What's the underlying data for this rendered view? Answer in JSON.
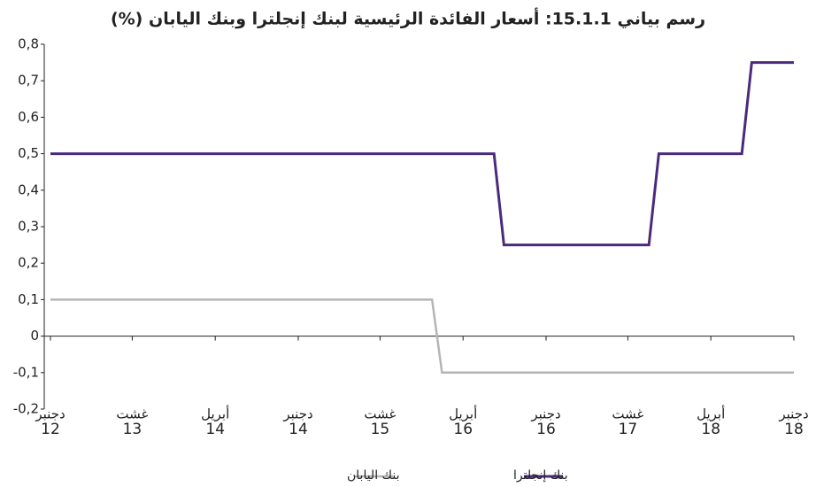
{
  "chart_data": {
    "type": "line",
    "title": "رسم بياني 15.1.1: أسعار الفائدة الرئيسية لبنك إنجلترا  وبنك اليابان (%)",
    "xlim": [
      2012.92,
      2018.92
    ],
    "xticks": [
      {
        "value": 2012.92,
        "label": "دجنبر",
        "year": "12"
      },
      {
        "value": 2013.58,
        "label": "غشت",
        "year": "13"
      },
      {
        "value": 2014.25,
        "label": "أبريل",
        "year": "14"
      },
      {
        "value": 2014.92,
        "label": "دجنبر",
        "year": "14"
      },
      {
        "value": 2015.58,
        "label": "غشت",
        "year": "15"
      },
      {
        "value": 2016.25,
        "label": "أبريل",
        "year": "16"
      },
      {
        "value": 2016.92,
        "label": "دجنبر",
        "year": "16"
      },
      {
        "value": 2017.58,
        "label": "غشت",
        "year": "17"
      },
      {
        "value": 2018.25,
        "label": "أبريل",
        "year": "18"
      },
      {
        "value": 2018.92,
        "label": "دجنبر",
        "year": "18"
      }
    ],
    "ylim": [
      -0.2,
      0.8
    ],
    "yticks": [
      {
        "value": -0.2,
        "label": "-0,2"
      },
      {
        "value": -0.1,
        "label": "-0,1"
      },
      0,
      {
        "value": 0.1,
        "label": "0,1"
      },
      {
        "value": 0.2,
        "label": "0,2"
      },
      {
        "value": 0.3,
        "label": "0,3"
      },
      {
        "value": 0.4,
        "label": "0,4"
      },
      {
        "value": 0.5,
        "label": "0,5"
      },
      {
        "value": 0.6,
        "label": "0,6"
      },
      {
        "value": 0.7,
        "label": "0,7"
      },
      {
        "value": 0.8,
        "label": "0,8"
      }
    ],
    "series": [
      {
        "name": "بنك إنجلترا",
        "color": "#4b2a7b",
        "x": [
          2012.92,
          2016.5,
          2016.58,
          2017.75,
          2017.83,
          2018.5,
          2018.58,
          2018.92
        ],
        "values": [
          0.5,
          0.5,
          0.25,
          0.25,
          0.5,
          0.5,
          0.75,
          0.75
        ]
      },
      {
        "name": "بنك اليابان",
        "color": "#b5b5b5",
        "x": [
          2012.92,
          2016.0,
          2016.08,
          2018.92
        ],
        "values": [
          0.1,
          0.1,
          -0.1,
          -0.1
        ]
      }
    ]
  }
}
